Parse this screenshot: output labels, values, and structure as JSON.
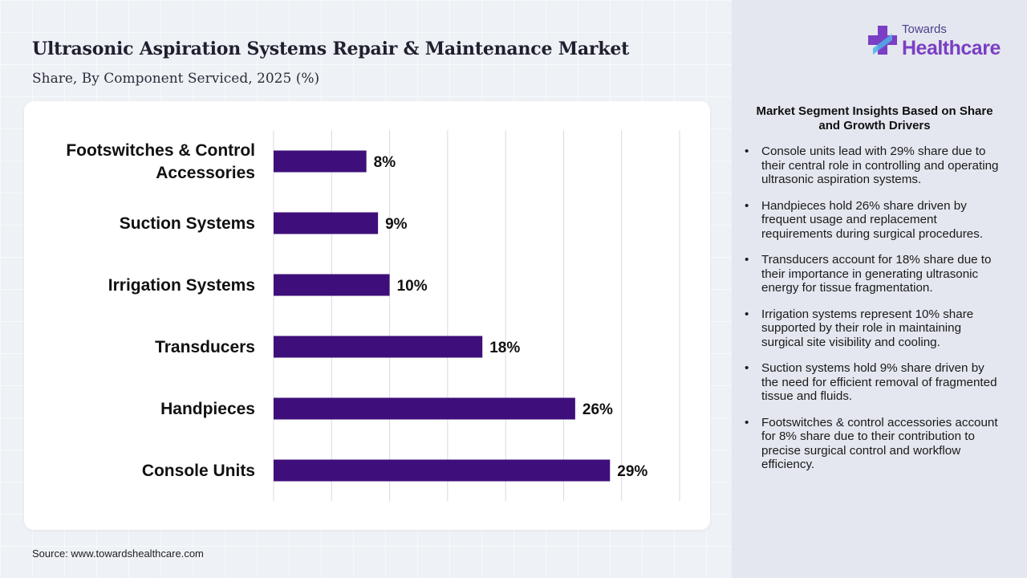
{
  "header": {
    "title": "Ultrasonic Aspiration Systems Repair & Maintenance Market",
    "subtitle": "Share, By Component Serviced, 2025 (%)"
  },
  "source": "Source: www.towardshealthcare.com",
  "logo": {
    "small_text": "Towards",
    "big_text": "Healthcare"
  },
  "insights": {
    "title": "Market Segment Insights Based on Share and Growth Drivers",
    "items": [
      "Console units lead with 29% share due to their central role in controlling and operating ultrasonic aspiration systems.",
      "Handpieces hold 26% share driven by frequent usage and replacement requirements during surgical procedures.",
      "Transducers account for 18% share due to their importance in generating ultrasonic energy for tissue fragmentation.",
      "Irrigation systems represent 10% share supported by their role in maintaining surgical site visibility and cooling.",
      "Suction systems hold 9% share driven by the need for efficient removal of fragmented tissue and fluids.",
      "Footswitches & control accessories account for 8% share due to their contribution to precise surgical control and workflow efficiency."
    ]
  },
  "colors": {
    "bar": "#3e0f7a",
    "grid": "#d9d9e2",
    "logo_accent": "#7a3fc4"
  },
  "chart_data": {
    "type": "bar",
    "orientation": "horizontal",
    "title": "Ultrasonic Aspiration Systems Repair & Maintenance Market",
    "subtitle": "Share, By Component Serviced, 2025 (%)",
    "categories": [
      [
        "Footswitches & Control",
        "Accessories"
      ],
      [
        "Suction Systems"
      ],
      [
        "Irrigation Systems"
      ],
      [
        "Transducers"
      ],
      [
        "Handpieces"
      ],
      [
        "Console Units"
      ]
    ],
    "values": [
      8,
      9,
      10,
      18,
      26,
      29
    ],
    "value_labels": [
      "8%",
      "9%",
      "10%",
      "18%",
      "26%",
      "29%"
    ],
    "xlim": [
      0,
      35
    ],
    "grid": true,
    "legend": "none"
  }
}
